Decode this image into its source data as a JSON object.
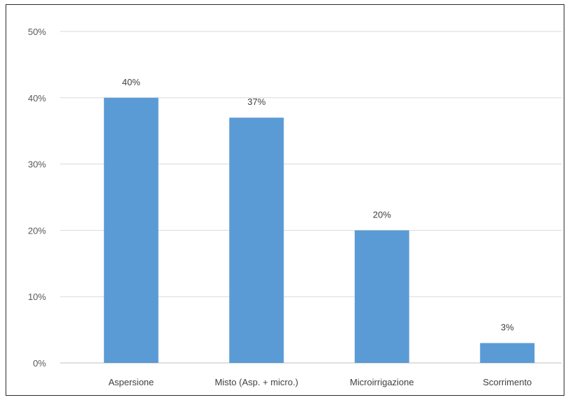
{
  "chart_data": {
    "type": "bar",
    "categories": [
      "Aspersione",
      "Misto (Asp. + micro.)",
      "Microirrigazione",
      "Scorrimento"
    ],
    "values": [
      40,
      37,
      20,
      3
    ],
    "data_labels": [
      "40%",
      "37%",
      "20%",
      "3%"
    ],
    "title": "",
    "xlabel": "",
    "ylabel": "",
    "ylim": [
      0,
      50
    ],
    "yticks": [
      0,
      10,
      20,
      30,
      40,
      50
    ],
    "ytick_labels": [
      "0%",
      "10%",
      "20%",
      "30%",
      "40%",
      "50%"
    ],
    "grid": true,
    "legend": "none",
    "bar_color": "#5b9bd5"
  }
}
